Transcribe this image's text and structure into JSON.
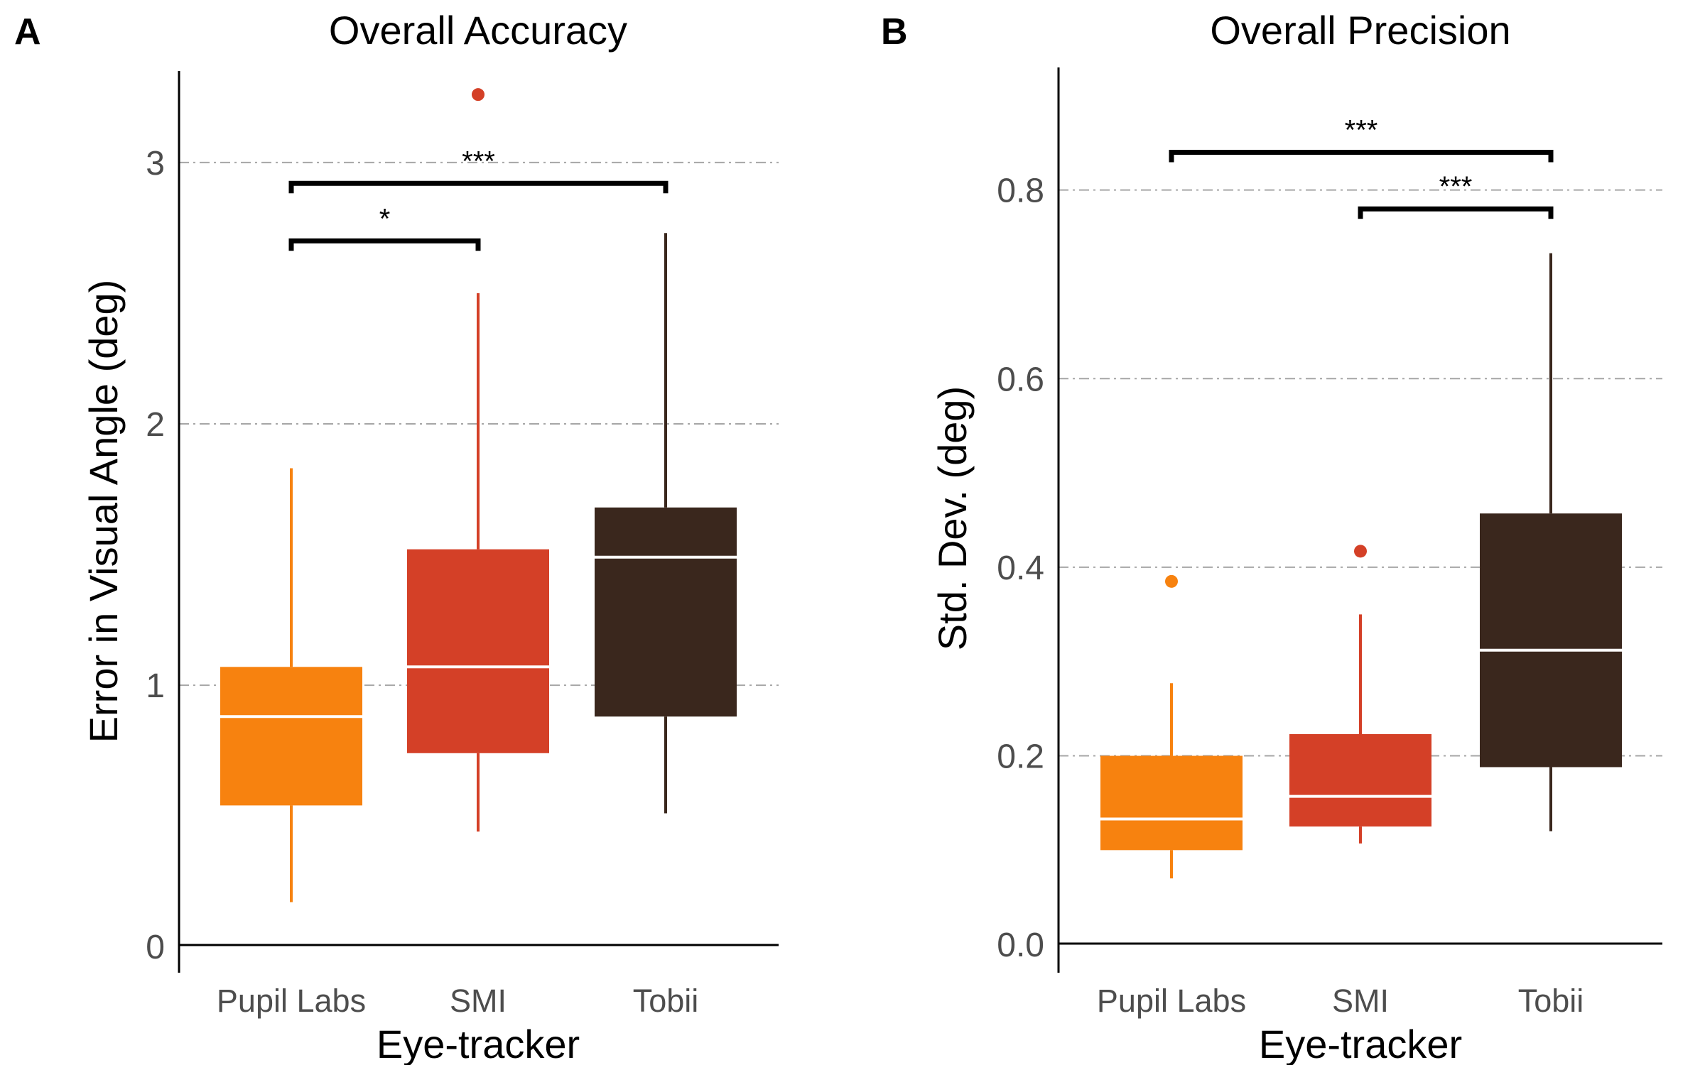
{
  "chart_data": [
    {
      "panel": "A",
      "type": "box",
      "title": "Overall Accuracy",
      "xlabel": "Eye-tracker",
      "ylabel": "Error in Visual Angle (deg)",
      "ylim": [
        -0.1,
        3.35
      ],
      "yticks": [
        0,
        1,
        2,
        3
      ],
      "ytick_labels": [
        "0",
        "1",
        "2",
        "3"
      ],
      "grid": "dashed-horizontal",
      "categories": [
        "Pupil Labs",
        "SMI",
        "Tobii"
      ],
      "colors": [
        "#f7820f",
        "#d44027",
        "#3a271d"
      ],
      "boxes": [
        {
          "whisker_low": 0.17,
          "q1": 0.54,
          "median": 0.88,
          "q3": 1.07,
          "whisker_high": 1.83,
          "outliers": []
        },
        {
          "whisker_low": 0.44,
          "q1": 0.74,
          "median": 1.07,
          "q3": 1.52,
          "whisker_high": 2.5,
          "outliers": [
            3.26
          ]
        },
        {
          "whisker_low": 0.51,
          "q1": 0.88,
          "median": 1.49,
          "q3": 1.68,
          "whisker_high": 2.73,
          "outliers": []
        }
      ],
      "significance": [
        {
          "from": 0,
          "to": 1,
          "y": 2.7,
          "label": "*"
        },
        {
          "from": 0,
          "to": 2,
          "y": 2.92,
          "label": "***"
        }
      ]
    },
    {
      "panel": "B",
      "type": "box",
      "title": "Overall Precision",
      "xlabel": "Eye-tracker",
      "ylabel": "Std. Dev. (deg)",
      "ylim": [
        -0.03,
        0.93
      ],
      "yticks": [
        0.0,
        0.2,
        0.4,
        0.6,
        0.8
      ],
      "ytick_labels": [
        "0.0",
        "0.2",
        "0.4",
        "0.6",
        "0.8"
      ],
      "grid": "dashed-horizontal",
      "categories": [
        "Pupil Labs",
        "SMI",
        "Tobii"
      ],
      "colors": [
        "#f7820f",
        "#d44027",
        "#3a271d"
      ],
      "boxes": [
        {
          "whisker_low": 0.07,
          "q1": 0.1,
          "median": 0.133,
          "q3": 0.2,
          "whisker_high": 0.277,
          "outliers": [
            0.385
          ]
        },
        {
          "whisker_low": 0.107,
          "q1": 0.125,
          "median": 0.157,
          "q3": 0.223,
          "whisker_high": 0.35,
          "outliers": [
            0.417
          ]
        },
        {
          "whisker_low": 0.12,
          "q1": 0.188,
          "median": 0.312,
          "q3": 0.457,
          "whisker_high": 0.733,
          "outliers": []
        }
      ],
      "significance": [
        {
          "from": 1,
          "to": 2,
          "y": 0.78,
          "label": "***"
        },
        {
          "from": 0,
          "to": 2,
          "y": 0.84,
          "label": "***"
        }
      ]
    }
  ]
}
